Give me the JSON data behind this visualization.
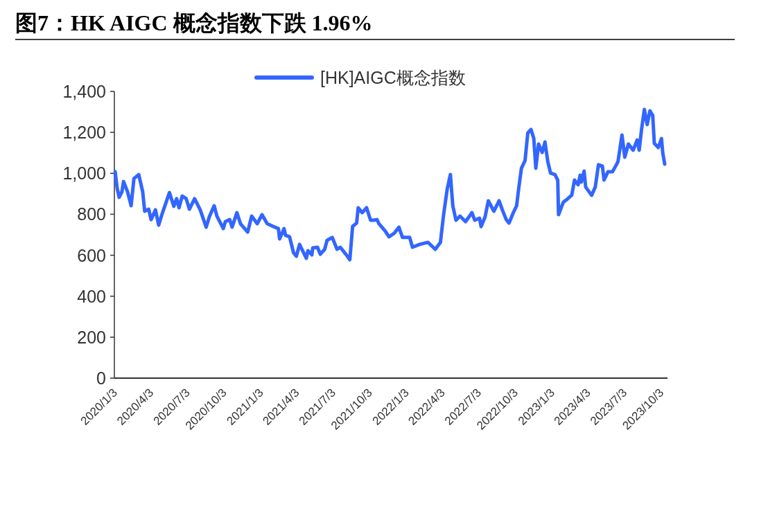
{
  "chart_data": {
    "type": "line",
    "title": "图7：HK AIGC 概念指数下跌 1.96%",
    "x": [
      "2020-01-03",
      "2020-01-08",
      "2020-01-13",
      "2020-01-20",
      "2020-01-24",
      "2020-02-03",
      "2020-02-12",
      "2020-02-19",
      "2020-03-02",
      "2020-03-12",
      "2020-03-17",
      "2020-03-27",
      "2020-04-02",
      "2020-04-13",
      "2020-04-21",
      "2020-04-29",
      "2020-05-11",
      "2020-05-18",
      "2020-05-29",
      "2020-06-05",
      "2020-06-11",
      "2020-06-19",
      "2020-06-29",
      "2020-07-07",
      "2020-07-20",
      "2020-08-03",
      "2020-08-18",
      "2020-08-26",
      "2020-09-07",
      "2020-09-14",
      "2020-09-30",
      "2020-10-05",
      "2020-10-16",
      "2020-10-22",
      "2020-11-03",
      "2020-11-12",
      "2020-11-30",
      "2020-12-10",
      "2020-12-24",
      "2021-01-05",
      "2021-01-18",
      "2021-02-03",
      "2021-02-15",
      "2021-02-18",
      "2021-03-01",
      "2021-03-05",
      "2021-03-15",
      "2021-03-25",
      "2021-04-01",
      "2021-04-09",
      "2021-04-26",
      "2021-04-30",
      "2021-05-10",
      "2021-05-12",
      "2021-05-24",
      "2021-05-31",
      "2021-06-11",
      "2021-06-17",
      "2021-06-30",
      "2021-07-12",
      "2021-07-20",
      "2021-08-03",
      "2021-08-13",
      "2021-08-20",
      "2021-08-30",
      "2021-09-03",
      "2021-09-13",
      "2021-09-24",
      "2021-10-04",
      "2021-10-11",
      "2021-10-20",
      "2021-10-25",
      "2021-11-09",
      "2021-11-19",
      "2021-12-02",
      "2021-12-14",
      "2021-12-23",
      "2022-01-10",
      "2022-01-17",
      "2022-02-04",
      "2022-02-25",
      "2022-03-15",
      "2022-03-28",
      "2022-04-05",
      "2022-04-14",
      "2022-04-22",
      "2022-04-28",
      "2022-05-06",
      "2022-05-16",
      "2022-05-30",
      "2022-06-15",
      "2022-06-22",
      "2022-07-04",
      "2022-07-08",
      "2022-07-18",
      "2022-07-26",
      "2022-08-09",
      "2022-08-22",
      "2022-08-30",
      "2022-09-09",
      "2022-09-16",
      "2022-09-26",
      "2022-10-05",
      "2022-10-10",
      "2022-10-17",
      "2022-10-26",
      "2022-11-02",
      "2022-11-10",
      "2022-11-17",
      "2022-11-22",
      "2022-11-29",
      "2022-12-08",
      "2022-12-15",
      "2022-12-22",
      "2022-12-29",
      "2023-01-09",
      "2023-01-16",
      "2023-01-18",
      "2023-01-30",
      "2023-02-10",
      "2023-02-20",
      "2023-02-27",
      "2023-03-08",
      "2023-03-13",
      "2023-03-16",
      "2023-03-23",
      "2023-03-27",
      "2023-04-11",
      "2023-04-20",
      "2023-04-28",
      "2023-05-08",
      "2023-05-12",
      "2023-05-22",
      "2023-06-02",
      "2023-06-12",
      "2023-06-16",
      "2023-06-26",
      "2023-07-03",
      "2023-07-12",
      "2023-07-24",
      "2023-08-03",
      "2023-08-08",
      "2023-08-14",
      "2023-08-21",
      "2023-08-28",
      "2023-09-04",
      "2023-09-11",
      "2023-09-15",
      "2023-09-25",
      "2023-10-03",
      "2023-10-06",
      "2023-10-11"
    ],
    "series": [
      {
        "name": "[HK]AIGC概念指数",
        "color": "#3366ff",
        "values": [
          1008,
          927,
          883,
          910,
          960,
          910,
          842,
          974,
          994,
          910,
          815,
          825,
          774,
          822,
          747,
          798,
          866,
          906,
          839,
          876,
          832,
          889,
          876,
          825,
          876,
          822,
          737,
          788,
          842,
          791,
          730,
          764,
          774,
          737,
          808,
          754,
          713,
          791,
          754,
          798,
          754,
          740,
          730,
          680,
          730,
          697,
          690,
          612,
          595,
          653,
          585,
          622,
          602,
          636,
          639,
          605,
          629,
          673,
          687,
          629,
          639,
          605,
          578,
          741,
          757,
          832,
          808,
          832,
          771,
          771,
          774,
          754,
          720,
          690,
          707,
          737,
          687,
          687,
          639,
          653,
          663,
          629,
          663,
          798,
          923,
          994,
          842,
          771,
          791,
          764,
          808,
          771,
          781,
          740,
          788,
          866,
          815,
          866,
          822,
          774,
          757,
          805,
          842,
          923,
          1025,
          1062,
          1197,
          1214,
          1170,
          1025,
          1143,
          1102,
          1153,
          1058,
          1001,
          994,
          967,
          798,
          859,
          876,
          893,
          967,
          944,
          991,
          957,
          1011,
          933,
          893,
          933,
          1042,
          1035,
          967,
          1008,
          1008,
          1042,
          1058,
          1187,
          1079,
          1143,
          1113,
          1163,
          1113,
          1214,
          1312,
          1238,
          1305,
          1282,
          1146,
          1126,
          1170,
          1102,
          1045
        ]
      }
    ],
    "xlim": [
      "2020-01-01",
      "2023-10-18"
    ],
    "xticks": [
      {
        "value": "2020-01-03",
        "label": "2020/1/3"
      },
      {
        "value": "2020-04-03",
        "label": "2020/4/3"
      },
      {
        "value": "2020-07-03",
        "label": "2020/7/3"
      },
      {
        "value": "2020-10-03",
        "label": "2020/10/3"
      },
      {
        "value": "2021-01-03",
        "label": "2021/1/3"
      },
      {
        "value": "2021-04-03",
        "label": "2021/4/3"
      },
      {
        "value": "2021-07-03",
        "label": "2021/7/3"
      },
      {
        "value": "2021-10-03",
        "label": "2021/10/3"
      },
      {
        "value": "2022-01-03",
        "label": "2022/1/3"
      },
      {
        "value": "2022-04-03",
        "label": "2022/4/3"
      },
      {
        "value": "2022-07-03",
        "label": "2022/7/3"
      },
      {
        "value": "2022-10-03",
        "label": "2022/10/3"
      },
      {
        "value": "2023-01-03",
        "label": "2023/1/3"
      },
      {
        "value": "2023-04-03",
        "label": "2023/4/3"
      },
      {
        "value": "2023-07-03",
        "label": "2023/7/3"
      },
      {
        "value": "2023-10-03",
        "label": "2023/10/3"
      }
    ],
    "ylim": [
      0,
      1400
    ],
    "yticks": [
      {
        "value": 0,
        "label": "0"
      },
      {
        "value": 200,
        "label": "200"
      },
      {
        "value": 400,
        "label": "400"
      },
      {
        "value": 600,
        "label": "600"
      },
      {
        "value": 800,
        "label": "800"
      },
      {
        "value": 1000,
        "label": "1,000"
      },
      {
        "value": 1200,
        "label": "1,200"
      },
      {
        "value": 1400,
        "label": "1,400"
      }
    ],
    "legend": "top",
    "grid": false,
    "marker": "none",
    "line_style": "solid"
  }
}
